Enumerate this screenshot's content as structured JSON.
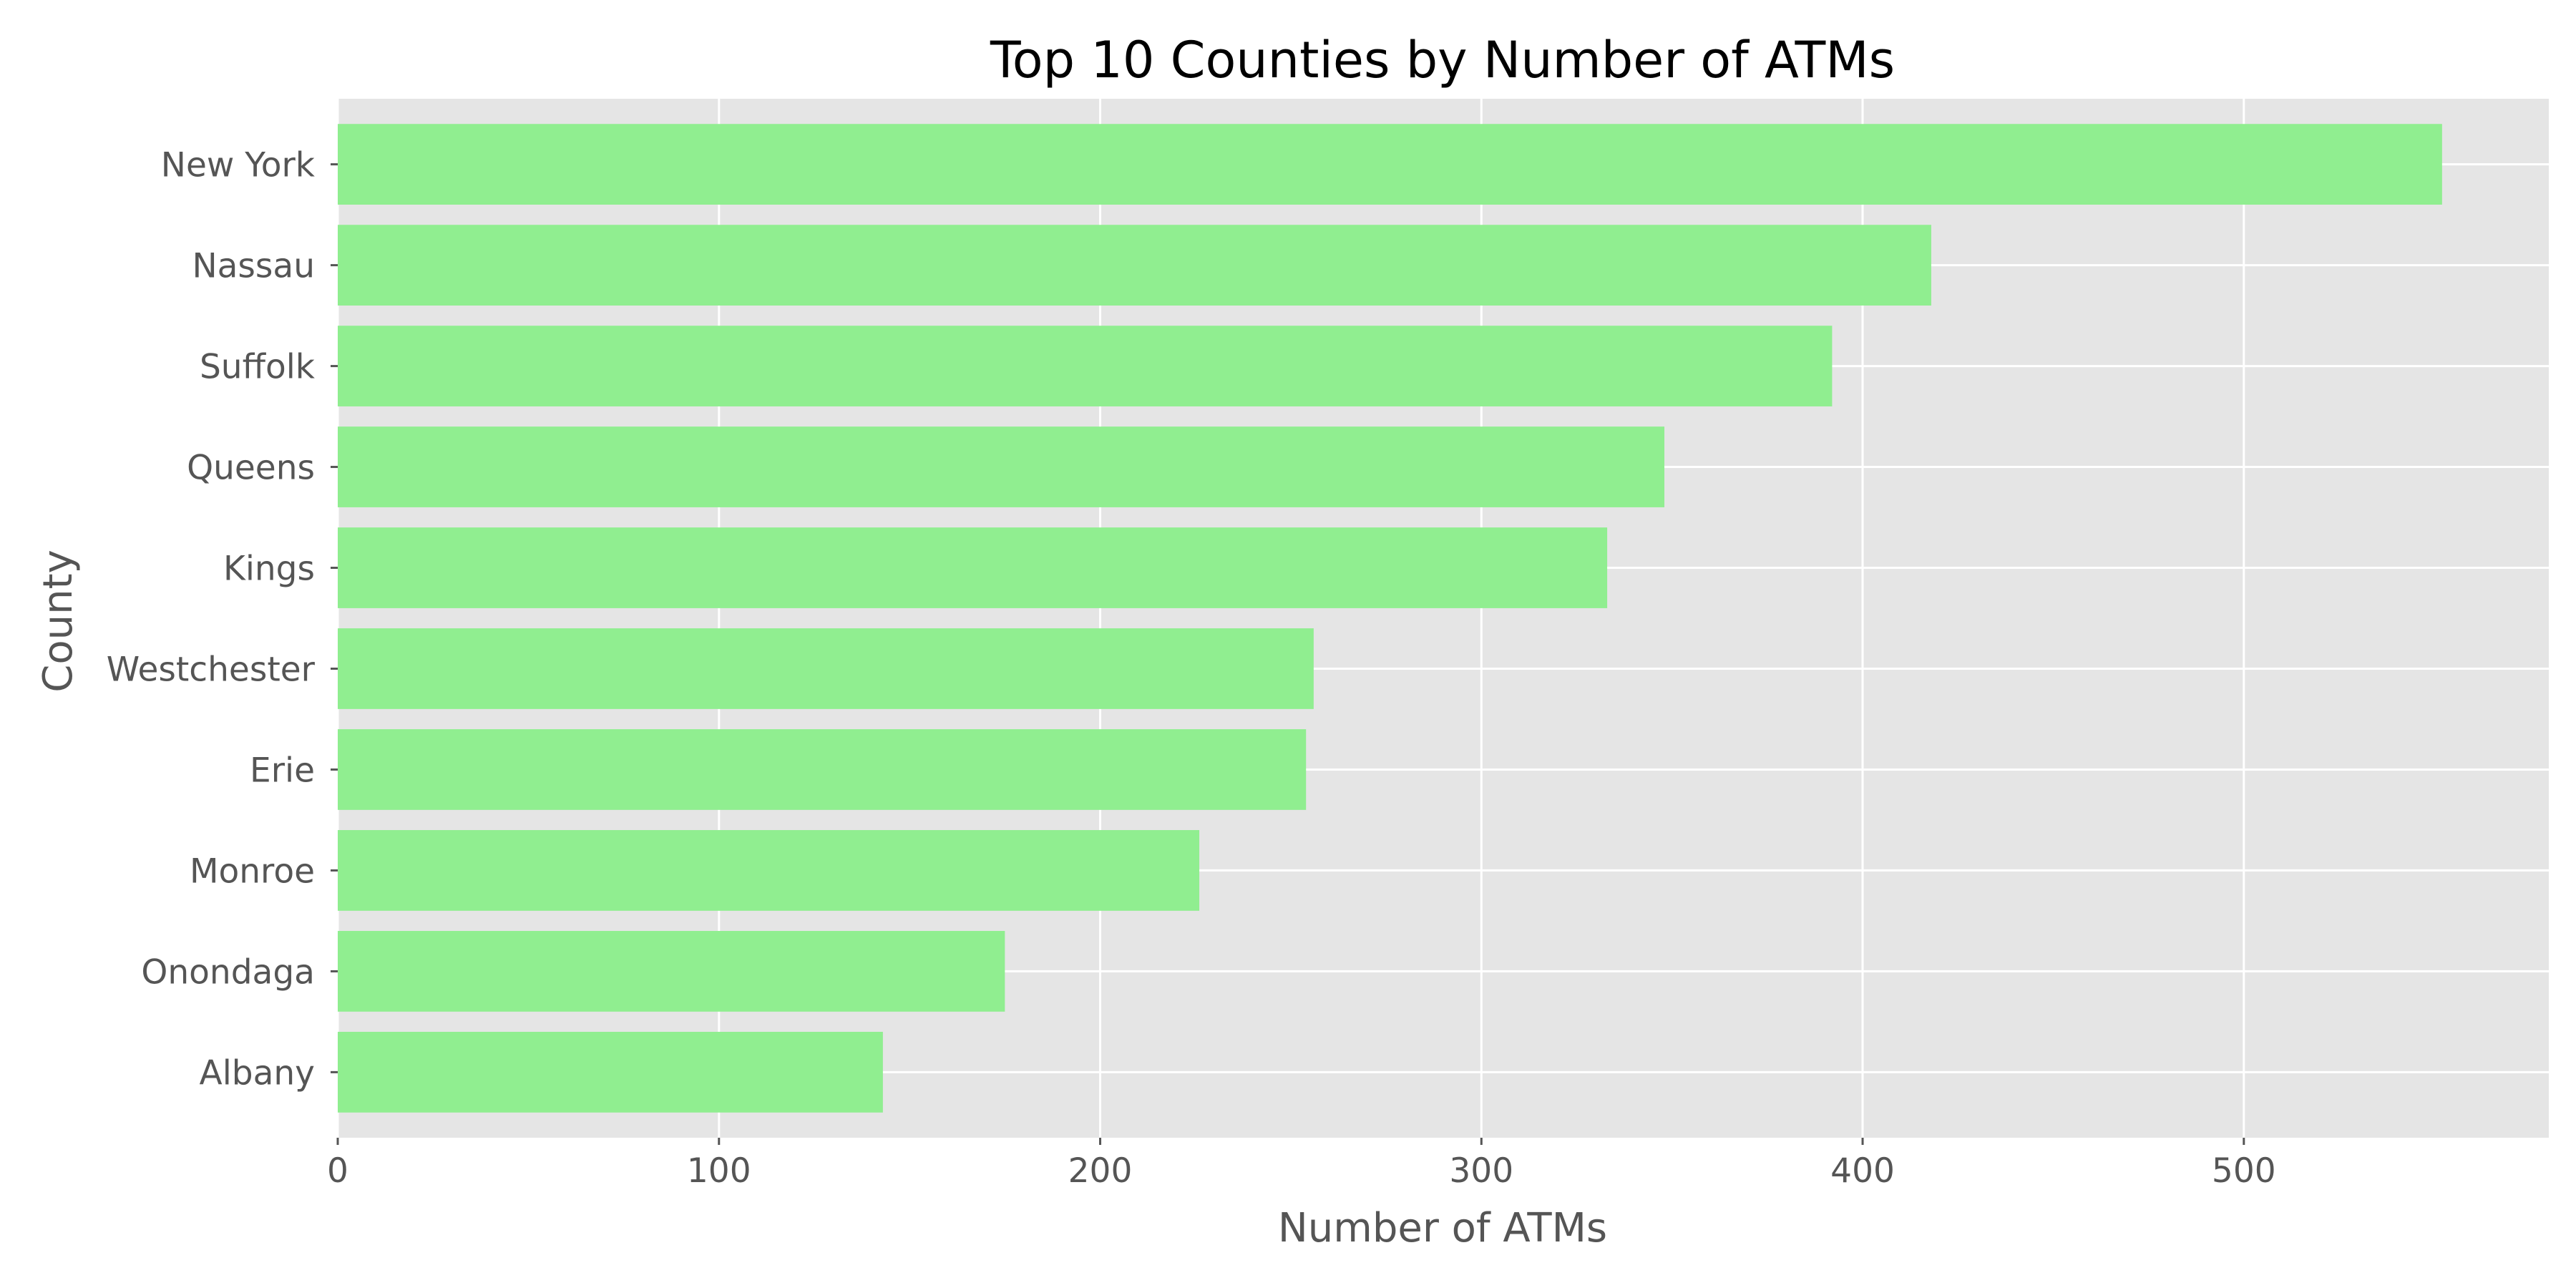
{
  "chart_data": {
    "type": "bar",
    "orientation": "horizontal",
    "title": "Top 10 Counties by Number of ATMs",
    "xlabel": "Number of ATMs",
    "ylabel": "County",
    "categories": [
      "New York",
      "Nassau",
      "Suffolk",
      "Queens",
      "Kings",
      "Westchester",
      "Erie",
      "Monroe",
      "Onondaga",
      "Albany"
    ],
    "values": [
      552,
      418,
      392,
      348,
      333,
      256,
      254,
      226,
      175,
      143
    ],
    "xlim": [
      0,
      580
    ],
    "xticks": [
      0,
      100,
      200,
      300,
      400,
      500
    ],
    "xtick_labels": [
      "0",
      "100",
      "200",
      "300",
      "400",
      "500"
    ],
    "grid": true,
    "style": "ggplot",
    "colors": {
      "bar": "#90EE90",
      "plot_background": "#E5E5E5",
      "grid": "#FFFFFF",
      "text": "#555555",
      "title": "#000000"
    }
  }
}
